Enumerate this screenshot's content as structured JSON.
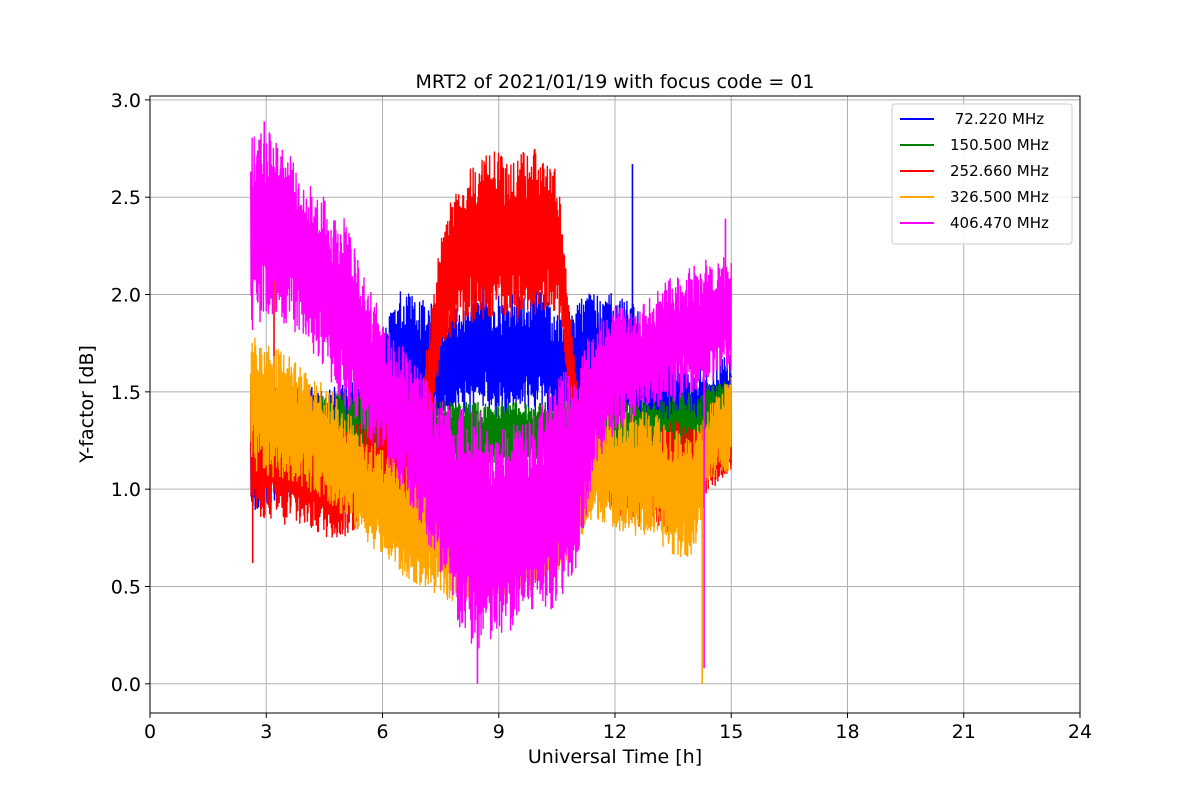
{
  "chart_data": {
    "type": "line",
    "title": "MRT2 of 2021/01/19 with focus code = 01",
    "xlabel": "Universal Time [h]",
    "ylabel": "Y-factor [dB]",
    "xlim": [
      0,
      24
    ],
    "ylim": [
      -0.15,
      3.02
    ],
    "xticks": [
      0,
      3,
      6,
      9,
      12,
      15,
      18,
      21,
      24
    ],
    "xtick_labels": [
      "0",
      "3",
      "6",
      "9",
      "12",
      "15",
      "18",
      "21",
      "24"
    ],
    "yticks": [
      0.0,
      0.5,
      1.0,
      1.5,
      2.0,
      2.5,
      3.0
    ],
    "ytick_labels": [
      "0.0",
      "0.5",
      "1.0",
      "1.5",
      "2.0",
      "2.5",
      "3.0"
    ],
    "grid": true,
    "legend_position": "top-right",
    "x_range_observed": [
      2.6,
      15.0
    ],
    "series": [
      {
        "name": " 72.220 MHz",
        "color": "#0000ff",
        "x": [
          2.6,
          3.0,
          3.5,
          4.0,
          4.5,
          5.0,
          5.5,
          6.0,
          6.5,
          7.0,
          7.5,
          8.0,
          8.5,
          9.0,
          9.5,
          10.0,
          10.5,
          11.0,
          11.5,
          12.0,
          12.5,
          13.0,
          13.5,
          14.0,
          14.5,
          15.0
        ],
        "low": [
          0.85,
          0.9,
          0.95,
          0.95,
          1.0,
          1.0,
          1.1,
          1.25,
          1.3,
          1.2,
          1.3,
          1.35,
          1.4,
          1.35,
          1.4,
          1.4,
          1.35,
          1.3,
          1.35,
          1.4,
          1.3,
          1.2,
          1.15,
          1.1,
          1.05,
          1.1
        ],
        "high": [
          1.5,
          1.55,
          1.5,
          1.55,
          1.5,
          1.55,
          1.6,
          1.8,
          2.05,
          2.0,
          1.95,
          2.0,
          2.05,
          2.0,
          2.05,
          2.05,
          1.9,
          1.95,
          2.05,
          2.0,
          1.95,
          1.8,
          1.7,
          1.6,
          1.65,
          1.7
        ],
        "spikes": [
          {
            "x": 12.45,
            "y": 2.67
          }
        ]
      },
      {
        "name": "150.500 MHz",
        "color": "#008000",
        "x": [
          2.6,
          3.0,
          3.5,
          4.0,
          4.5,
          5.0,
          5.5,
          6.0,
          6.5,
          7.0,
          7.5,
          8.0,
          8.5,
          9.0,
          9.5,
          10.0,
          10.5,
          11.0,
          11.5,
          12.0,
          12.5,
          13.0,
          13.5,
          14.0,
          14.5,
          15.0
        ],
        "low": [
          1.1,
          1.1,
          1.05,
          1.05,
          1.0,
          1.0,
          1.05,
          1.1,
          1.1,
          1.0,
          1.1,
          1.15,
          1.1,
          1.1,
          1.1,
          1.15,
          1.1,
          1.15,
          1.2,
          1.2,
          1.15,
          1.1,
          1.1,
          1.05,
          1.1,
          1.1
        ],
        "high": [
          1.6,
          1.55,
          1.55,
          1.5,
          1.5,
          1.5,
          1.5,
          1.5,
          1.5,
          1.5,
          1.45,
          1.45,
          1.45,
          1.45,
          1.45,
          1.45,
          1.45,
          1.45,
          1.45,
          1.5,
          1.45,
          1.45,
          1.5,
          1.5,
          1.55,
          1.55
        ],
        "spikes": []
      },
      {
        "name": "252.660 MHz",
        "color": "#ff0000",
        "x": [
          2.6,
          3.0,
          3.5,
          4.0,
          4.5,
          5.0,
          5.5,
          6.0,
          6.5,
          7.0,
          7.5,
          8.0,
          8.5,
          9.0,
          9.5,
          10.0,
          10.5,
          11.0,
          11.5,
          12.0,
          12.5,
          13.0,
          13.5,
          14.0,
          14.5,
          15.0
        ],
        "low": [
          0.85,
          0.85,
          0.8,
          0.8,
          0.75,
          0.75,
          0.8,
          0.85,
          0.9,
          0.9,
          1.7,
          1.85,
          1.85,
          1.9,
          1.85,
          1.9,
          1.9,
          1.2,
          1.0,
          0.85,
          0.8,
          0.8,
          0.75,
          0.8,
          1.0,
          1.1
        ],
        "high": [
          1.6,
          1.5,
          1.5,
          1.45,
          1.35,
          1.3,
          1.35,
          1.4,
          1.45,
          1.5,
          2.3,
          2.65,
          2.7,
          2.75,
          2.75,
          2.75,
          2.65,
          1.6,
          1.3,
          1.25,
          1.2,
          1.3,
          1.35,
          1.35,
          1.3,
          1.35
        ],
        "spikes": [
          {
            "x": 2.65,
            "y": 0.62
          },
          {
            "x": 3.2,
            "y": 2.15
          }
        ]
      },
      {
        "name": "326.500 MHz",
        "color": "#ffa500",
        "x": [
          2.6,
          3.0,
          3.5,
          4.0,
          4.5,
          5.0,
          5.5,
          6.0,
          6.5,
          7.0,
          7.5,
          8.0,
          8.5,
          9.0,
          9.5,
          10.0,
          10.5,
          11.0,
          11.5,
          12.0,
          12.5,
          13.0,
          13.5,
          14.0,
          14.5,
          15.0
        ],
        "low": [
          1.1,
          1.05,
          1.05,
          1.0,
          0.95,
          0.85,
          0.75,
          0.65,
          0.55,
          0.5,
          0.45,
          0.4,
          0.4,
          0.45,
          0.45,
          0.5,
          0.55,
          0.7,
          0.85,
          0.8,
          0.75,
          0.75,
          0.65,
          0.65,
          1.05,
          1.1
        ],
        "high": [
          1.8,
          1.75,
          1.7,
          1.6,
          1.55,
          1.45,
          1.3,
          1.2,
          1.15,
          1.1,
          1.0,
          0.95,
          0.9,
          0.9,
          0.95,
          1.05,
          1.1,
          1.15,
          1.35,
          1.4,
          1.4,
          1.4,
          1.3,
          1.3,
          1.45,
          1.6
        ],
        "spikes": [
          {
            "x": 14.25,
            "y": 0.0
          }
        ]
      },
      {
        "name": "406.470 MHz",
        "color": "#ff00ff",
        "x": [
          2.6,
          3.0,
          3.5,
          4.0,
          4.5,
          5.0,
          5.5,
          6.0,
          6.5,
          7.0,
          7.5,
          8.0,
          8.5,
          9.0,
          9.5,
          10.0,
          10.5,
          11.0,
          11.5,
          12.0,
          12.5,
          13.0,
          13.5,
          14.0,
          14.5,
          15.0
        ],
        "low": [
          1.8,
          1.9,
          1.85,
          1.75,
          1.6,
          1.4,
          1.3,
          1.15,
          1.0,
          0.8,
          0.5,
          0.25,
          0.15,
          0.2,
          0.3,
          0.35,
          0.4,
          0.6,
          1.1,
          1.3,
          1.35,
          1.4,
          1.45,
          1.5,
          1.55,
          1.6
        ],
        "high": [
          2.8,
          2.85,
          2.75,
          2.6,
          2.5,
          2.4,
          2.1,
          1.9,
          1.75,
          1.6,
          1.45,
          1.45,
          1.4,
          1.3,
          1.35,
          1.4,
          1.6,
          1.7,
          1.85,
          1.95,
          1.9,
          2.0,
          2.1,
          2.15,
          2.2,
          2.2
        ],
        "spikes": [
          {
            "x": 2.95,
            "y": 2.89
          },
          {
            "x": 8.45,
            "y": 0.0
          },
          {
            "x": 14.3,
            "y": 0.08
          },
          {
            "x": 14.85,
            "y": 2.39
          }
        ]
      }
    ]
  }
}
